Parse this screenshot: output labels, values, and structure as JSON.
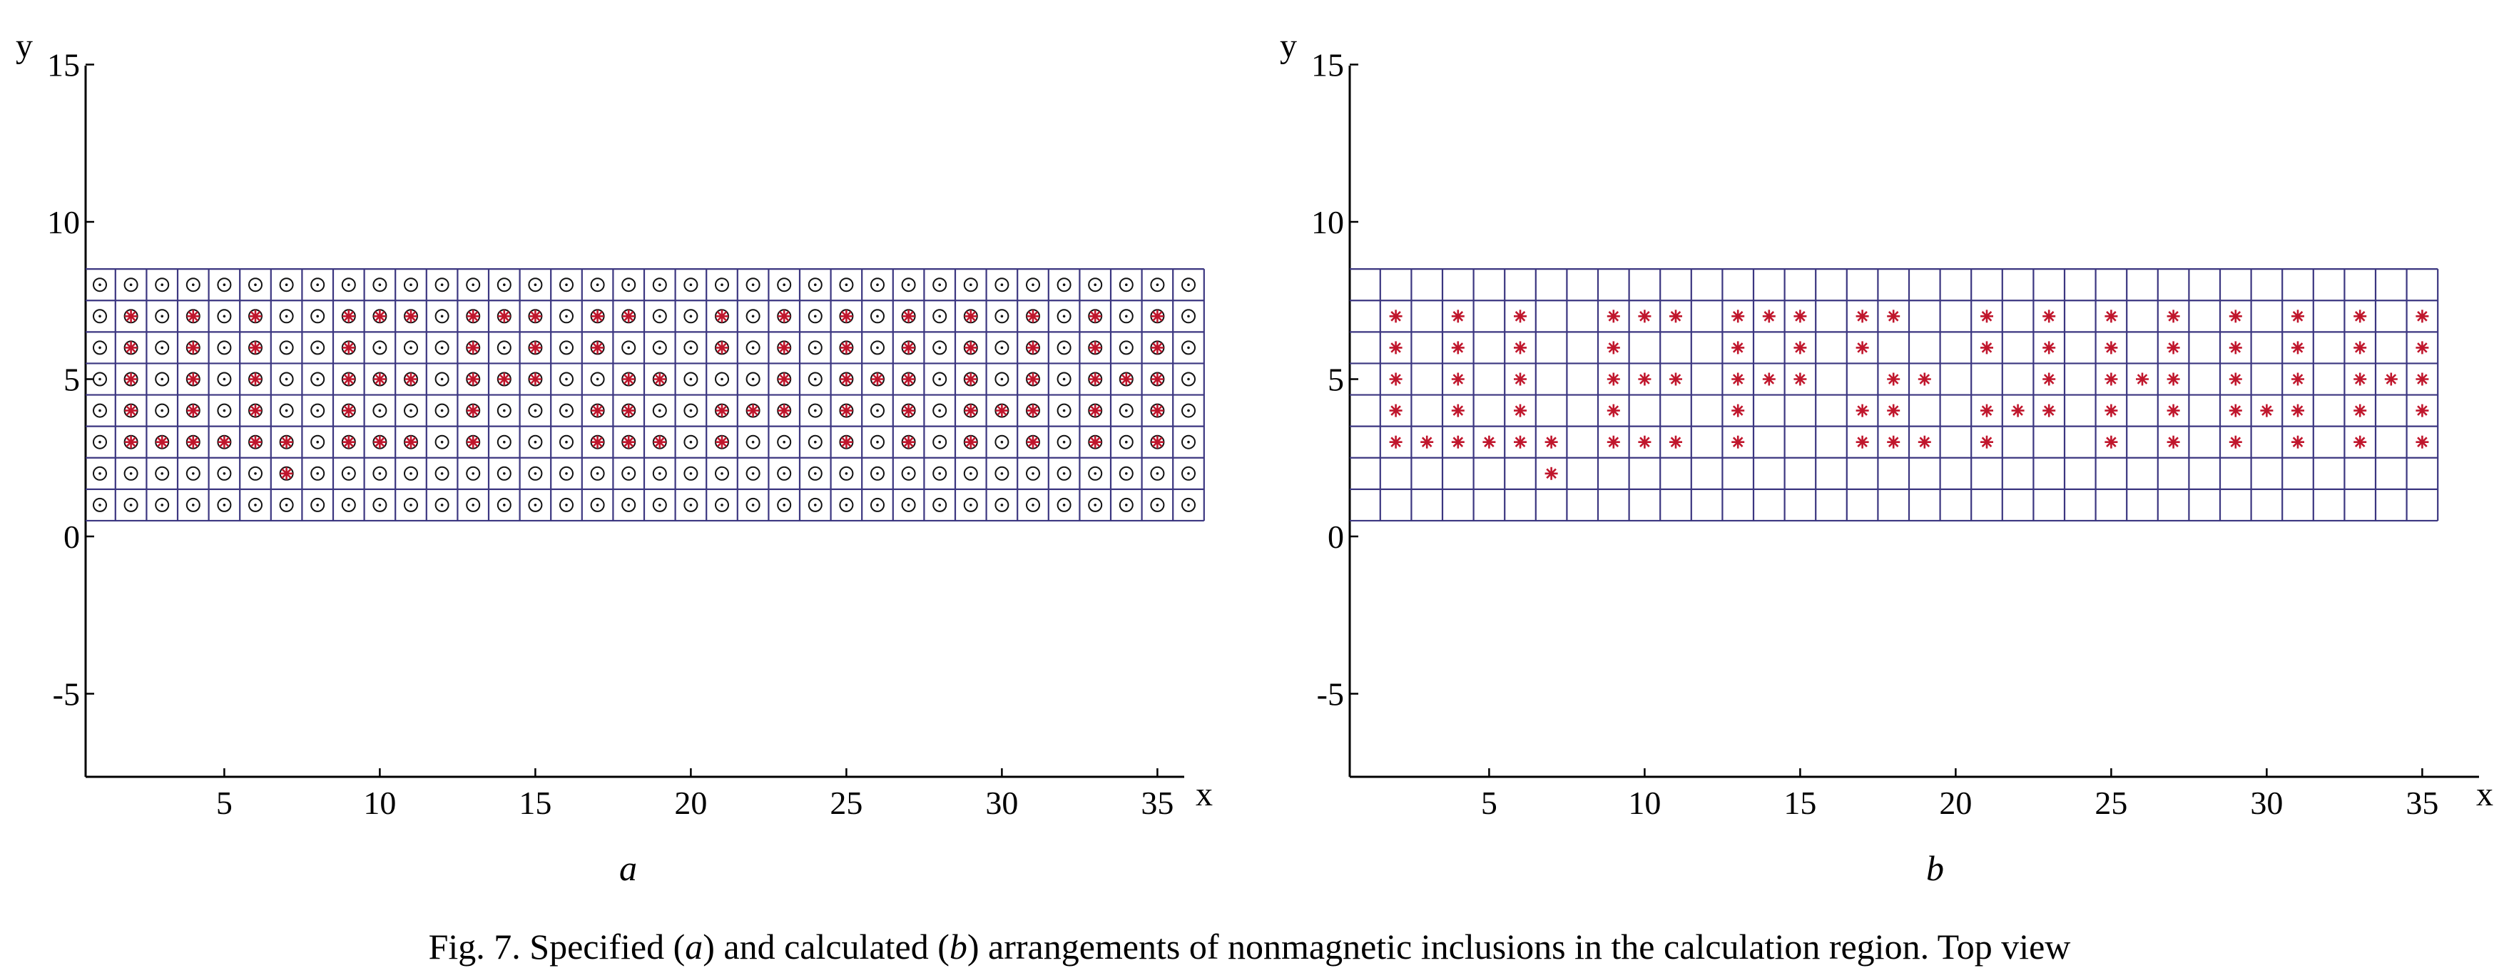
{
  "caption": {
    "prefix": "Fig. 7. Specified (",
    "a": "a",
    "middle": ") and calculated (",
    "b": "b",
    "suffix": ") arrangements of nonmagnetic inclusions in the calculation region. Top view"
  },
  "colors": {
    "grid": "#3b3680",
    "inclusion": "#c0162c",
    "axis": "#000000"
  },
  "chart_data": [
    {
      "type": "scatter",
      "panel_label": "a",
      "xlabel": "x",
      "ylabel": "y",
      "xlim": [
        0.5,
        36.5
      ],
      "ylim": [
        -8,
        15
      ],
      "x_ticks": [
        5,
        10,
        15,
        20,
        25,
        30,
        35
      ],
      "y_ticks": [
        15,
        10,
        5,
        0,
        -5
      ],
      "x_tick_labels": [
        "5",
        "10",
        "15",
        "20",
        "25",
        "30",
        "35"
      ],
      "y_tick_labels": [
        "15",
        "10",
        "5",
        "0",
        "-5"
      ],
      "grid": {
        "x_cells": [
          1,
          36
        ],
        "y_cells": [
          1,
          8
        ]
      },
      "series": [
        {
          "marker": "circle-dot",
          "x_range": [
            1,
            36
          ],
          "y_range": [
            1,
            8
          ]
        },
        {
          "marker": "star",
          "points": [
            [
              2,
              3
            ],
            [
              2,
              4
            ],
            [
              2,
              5
            ],
            [
              2,
              6
            ],
            [
              2,
              7
            ],
            [
              3,
              3
            ],
            [
              4,
              3
            ],
            [
              5,
              3
            ],
            [
              6,
              3
            ],
            [
              7,
              3
            ],
            [
              7,
              2
            ],
            [
              4,
              4
            ],
            [
              4,
              5
            ],
            [
              4,
              6
            ],
            [
              4,
              7
            ],
            [
              6,
              4
            ],
            [
              6,
              5
            ],
            [
              6,
              6
            ],
            [
              6,
              7
            ],
            [
              9,
              3
            ],
            [
              9,
              4
            ],
            [
              9,
              5
            ],
            [
              9,
              6
            ],
            [
              9,
              7
            ],
            [
              10,
              3
            ],
            [
              10,
              5
            ],
            [
              10,
              7
            ],
            [
              11,
              3
            ],
            [
              11,
              5
            ],
            [
              11,
              7
            ],
            [
              13,
              3
            ],
            [
              13,
              4
            ],
            [
              13,
              5
            ],
            [
              13,
              6
            ],
            [
              13,
              7
            ],
            [
              14,
              5
            ],
            [
              14,
              7
            ],
            [
              15,
              5
            ],
            [
              15,
              6
            ],
            [
              15,
              7
            ],
            [
              17,
              3
            ],
            [
              17,
              4
            ],
            [
              17,
              6
            ],
            [
              17,
              7
            ],
            [
              18,
              3
            ],
            [
              18,
              4
            ],
            [
              18,
              5
            ],
            [
              18,
              7
            ],
            [
              19,
              3
            ],
            [
              19,
              5
            ],
            [
              21,
              3
            ],
            [
              21,
              4
            ],
            [
              21,
              6
            ],
            [
              21,
              7
            ],
            [
              22,
              4
            ],
            [
              23,
              4
            ],
            [
              23,
              5
            ],
            [
              23,
              6
            ],
            [
              23,
              7
            ],
            [
              25,
              3
            ],
            [
              25,
              4
            ],
            [
              25,
              5
            ],
            [
              25,
              6
            ],
            [
              25,
              7
            ],
            [
              26,
              5
            ],
            [
              27,
              3
            ],
            [
              27,
              4
            ],
            [
              27,
              5
            ],
            [
              27,
              6
            ],
            [
              27,
              7
            ],
            [
              29,
              3
            ],
            [
              29,
              4
            ],
            [
              29,
              5
            ],
            [
              29,
              6
            ],
            [
              29,
              7
            ],
            [
              30,
              4
            ],
            [
              31,
              3
            ],
            [
              31,
              4
            ],
            [
              31,
              5
            ],
            [
              31,
              6
            ],
            [
              31,
              7
            ],
            [
              33,
              3
            ],
            [
              33,
              4
            ],
            [
              33,
              5
            ],
            [
              33,
              6
            ],
            [
              33,
              7
            ],
            [
              34,
              5
            ],
            [
              35,
              3
            ],
            [
              35,
              4
            ],
            [
              35,
              5
            ],
            [
              35,
              6
            ],
            [
              35,
              7
            ]
          ]
        }
      ]
    },
    {
      "type": "scatter",
      "panel_label": "b",
      "xlabel": "x",
      "ylabel": "y",
      "xlim": [
        0.5,
        36.5
      ],
      "ylim": [
        -8,
        15
      ],
      "x_ticks": [
        5,
        10,
        15,
        20,
        25,
        30,
        35
      ],
      "y_ticks": [
        15,
        10,
        5,
        0,
        -5
      ],
      "x_tick_labels": [
        "5",
        "10",
        "15",
        "20",
        "25",
        "30",
        "35"
      ],
      "y_tick_labels": [
        "15",
        "10",
        "5",
        "0",
        "-5"
      ],
      "grid": {
        "x_cells": [
          1,
          35
        ],
        "y_cells": [
          1,
          8
        ]
      },
      "series": [
        {
          "marker": "star",
          "points": [
            [
              2,
              3
            ],
            [
              2,
              4
            ],
            [
              2,
              5
            ],
            [
              2,
              6
            ],
            [
              2,
              7
            ],
            [
              3,
              3
            ],
            [
              4,
              3
            ],
            [
              5,
              3
            ],
            [
              6,
              3
            ],
            [
              7,
              3
            ],
            [
              7,
              2
            ],
            [
              4,
              4
            ],
            [
              4,
              5
            ],
            [
              4,
              6
            ],
            [
              4,
              7
            ],
            [
              6,
              4
            ],
            [
              6,
              5
            ],
            [
              6,
              6
            ],
            [
              6,
              7
            ],
            [
              9,
              3
            ],
            [
              9,
              4
            ],
            [
              9,
              5
            ],
            [
              9,
              6
            ],
            [
              9,
              7
            ],
            [
              10,
              3
            ],
            [
              10,
              5
            ],
            [
              10,
              7
            ],
            [
              11,
              3
            ],
            [
              11,
              5
            ],
            [
              11,
              7
            ],
            [
              13,
              3
            ],
            [
              13,
              4
            ],
            [
              13,
              5
            ],
            [
              13,
              6
            ],
            [
              13,
              7
            ],
            [
              14,
              5
            ],
            [
              14,
              7
            ],
            [
              15,
              5
            ],
            [
              15,
              6
            ],
            [
              15,
              7
            ],
            [
              17,
              3
            ],
            [
              17,
              4
            ],
            [
              17,
              6
            ],
            [
              17,
              7
            ],
            [
              18,
              3
            ],
            [
              18,
              4
            ],
            [
              18,
              5
            ],
            [
              18,
              7
            ],
            [
              19,
              3
            ],
            [
              19,
              5
            ],
            [
              21,
              3
            ],
            [
              21,
              4
            ],
            [
              21,
              6
            ],
            [
              21,
              7
            ],
            [
              22,
              4
            ],
            [
              23,
              4
            ],
            [
              23,
              5
            ],
            [
              23,
              6
            ],
            [
              23,
              7
            ],
            [
              25,
              3
            ],
            [
              25,
              4
            ],
            [
              25,
              5
            ],
            [
              25,
              6
            ],
            [
              25,
              7
            ],
            [
              26,
              5
            ],
            [
              27,
              3
            ],
            [
              27,
              4
            ],
            [
              27,
              5
            ],
            [
              27,
              6
            ],
            [
              27,
              7
            ],
            [
              29,
              3
            ],
            [
              29,
              4
            ],
            [
              29,
              5
            ],
            [
              29,
              6
            ],
            [
              29,
              7
            ],
            [
              30,
              4
            ],
            [
              31,
              3
            ],
            [
              31,
              4
            ],
            [
              31,
              5
            ],
            [
              31,
              6
            ],
            [
              31,
              7
            ],
            [
              33,
              3
            ],
            [
              33,
              4
            ],
            [
              33,
              5
            ],
            [
              33,
              6
            ],
            [
              33,
              7
            ],
            [
              34,
              5
            ],
            [
              35,
              3
            ],
            [
              35,
              4
            ],
            [
              35,
              5
            ],
            [
              35,
              6
            ],
            [
              35,
              7
            ]
          ]
        }
      ]
    }
  ]
}
